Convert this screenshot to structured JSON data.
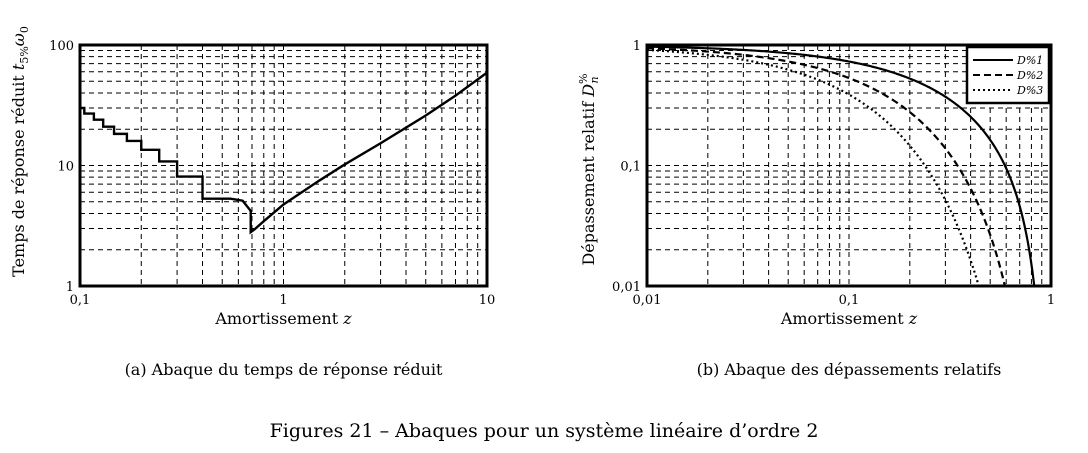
{
  "figure_caption": "Figures 21 – Abaques pour un système linéaire d’ordre 2",
  "chart_data": [
    {
      "type": "line",
      "caption": "(a) Abaque du temps de réponse réduit",
      "xlabel": "Amortissement z",
      "ylabel": "Temps de réponse réduit t5% ω0",
      "xscale": "log",
      "yscale": "log",
      "xlim": [
        0.1,
        10
      ],
      "ylim": [
        1,
        100
      ],
      "xticks": [
        0.1,
        1,
        10
      ],
      "xtick_labels": [
        "0,1",
        "1",
        "10"
      ],
      "yticks": [
        1,
        10,
        100
      ],
      "ytick_labels": [
        "1",
        "10",
        "100"
      ],
      "grid": true,
      "series": [
        {
          "name": "t5% ω0",
          "style": "solid",
          "points": [
            [
              0.1,
              30
            ],
            [
              0.105,
              30
            ],
            [
              0.105,
              27
            ],
            [
              0.117,
              27
            ],
            [
              0.117,
              24
            ],
            [
              0.13,
              24
            ],
            [
              0.13,
              21
            ],
            [
              0.147,
              21
            ],
            [
              0.147,
              18.3
            ],
            [
              0.17,
              18.3
            ],
            [
              0.17,
              16
            ],
            [
              0.2,
              16
            ],
            [
              0.2,
              13.5
            ],
            [
              0.245,
              13.5
            ],
            [
              0.245,
              10.8
            ],
            [
              0.3,
              10.8
            ],
            [
              0.3,
              8.1
            ],
            [
              0.4,
              8.1
            ],
            [
              0.4,
              5.3
            ],
            [
              0.55,
              5.3
            ],
            [
              0.63,
              5.1
            ],
            [
              0.69,
              4.2
            ],
            [
              0.69,
              2.8
            ],
            [
              0.72,
              2.95
            ],
            [
              0.8,
              3.45
            ],
            [
              1,
              4.75
            ],
            [
              1.5,
              7.5
            ],
            [
              2,
              10.2
            ],
            [
              3,
              15.3
            ],
            [
              5,
              26
            ],
            [
              7,
              38
            ],
            [
              10,
              59
            ]
          ]
        }
      ]
    },
    {
      "type": "line",
      "caption": "(b) Abaque des dépassements relatifs",
      "xlabel": "Amortissement z",
      "ylabel": "Dépassement relatif D%n",
      "xscale": "log",
      "yscale": "log",
      "xlim": [
        0.01,
        1
      ],
      "ylim": [
        0.01,
        1
      ],
      "xticks": [
        0.01,
        0.1,
        1
      ],
      "xtick_labels": [
        "0,01",
        "0,1",
        "1"
      ],
      "yticks": [
        0.01,
        0.1,
        1
      ],
      "ytick_labels": [
        "0,01",
        "0,1",
        "1"
      ],
      "grid": true,
      "legend_position": "top-right",
      "series": [
        {
          "name": "D%1",
          "n": 1,
          "style": "solid"
        },
        {
          "name": "D%2",
          "n": 2,
          "style": "dashed"
        },
        {
          "name": "D%3",
          "n": 3,
          "style": "dotted"
        }
      ]
    }
  ]
}
